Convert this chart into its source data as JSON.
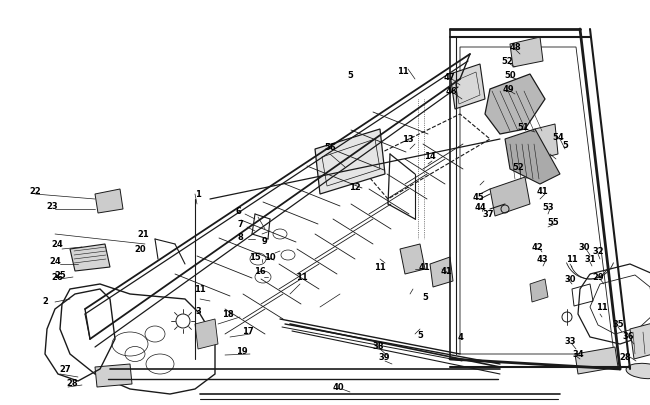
{
  "bg_color": "#ffffff",
  "line_color": "#1a1a1a",
  "text_color": "#000000",
  "fig_width": 6.5,
  "fig_height": 4.06,
  "dpi": 100,
  "font_size": 6.0
}
